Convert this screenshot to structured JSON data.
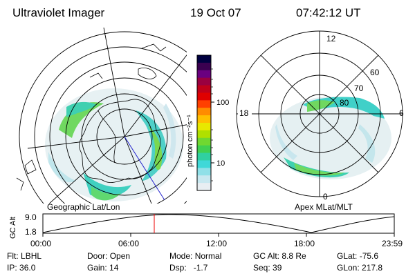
{
  "header": {
    "instrument": "Ultraviolet Imager",
    "date": "19 Oct 07",
    "time": "07:42:12 UT"
  },
  "colorbar": {
    "unit_label": "photon cm⁻²s⁻¹",
    "ticks": [
      "100",
      "10"
    ],
    "colors": [
      "#000040",
      "#3a0050",
      "#6a0080",
      "#9a0040",
      "#c0001a",
      "#e00000",
      "#ff4000",
      "#ff8c00",
      "#ffc000",
      "#e8e800",
      "#b0e000",
      "#70d830",
      "#40d050",
      "#30d0a0",
      "#40d8d8",
      "#90e0e8",
      "#c8e8f0",
      "#e8eef2"
    ]
  },
  "left_map": {
    "caption": "Geographic Lat/Lon"
  },
  "right_map": {
    "caption": "Apex MLat/MLT",
    "mlt_labels": {
      "top": "12",
      "left": "18",
      "right": "6",
      "bottom": "0"
    },
    "mlat_labels": [
      "60",
      "70",
      "80"
    ]
  },
  "altitude_plot": {
    "ylabel": "GC Alt",
    "yticks": [
      "9.0",
      "1.8"
    ],
    "xticks": [
      "00:00",
      "06:00",
      "12:00",
      "18:00",
      "23:59"
    ],
    "marker_time": "07:42"
  },
  "info": {
    "filter_label": "Flt:",
    "filter_value": "LBHL",
    "door_label": "Door:",
    "door_value": "Open",
    "mode_label": "Mode:",
    "mode_value": "Normal",
    "gcalt_label": "GC Alt:",
    "gcalt_value": "8.8 Re",
    "glat_label": "GLat:",
    "glat_value": "-75.6",
    "ip_label": "IP:",
    "ip_value": "36.0",
    "gain_label": "Gain:",
    "gain_value": "14",
    "dsp_label": "Dsp:",
    "dsp_value": "-1.7",
    "seq_label": "Seq:",
    "seq_value": "39",
    "glon_label": "GLon:",
    "glon_value": "217.8"
  }
}
